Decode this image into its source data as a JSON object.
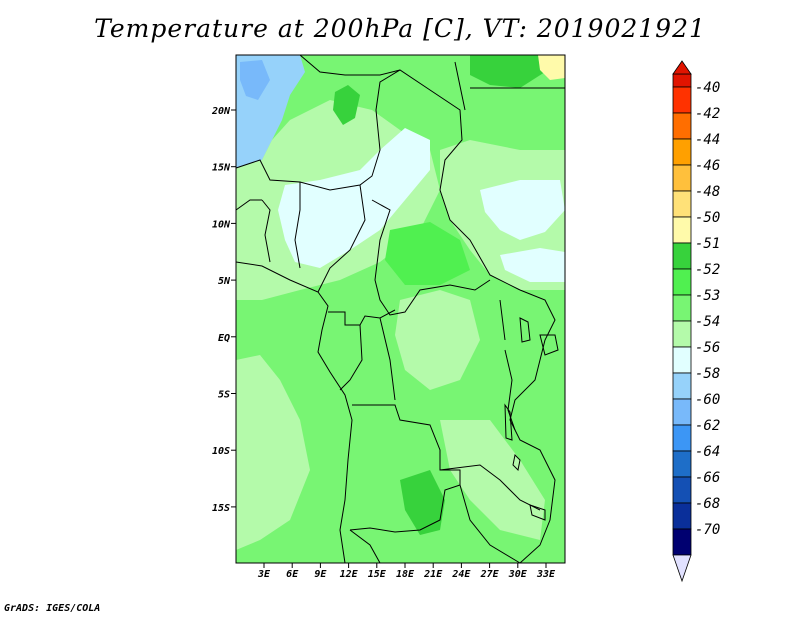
{
  "title": "Temperature at 200hPa [C], VT: 2019021921",
  "credit": "GrADS: IGES/COLA",
  "map": {
    "lat_labels": [
      "20N",
      "15N",
      "10N",
      "5N",
      "EQ",
      "5S",
      "10S",
      "15S"
    ],
    "lon_labels": [
      "3E",
      "6E",
      "9E",
      "12E",
      "15E",
      "18E",
      "21E",
      "24E",
      "27E",
      "30E",
      "33E"
    ],
    "lon_range": [
      "0E",
      "35E"
    ],
    "lat_range": [
      "20S",
      "25N"
    ],
    "colors": {
      "lt_blue": "#96d2fa",
      "v_lt_blue": "#e1ffff",
      "pale_green": "#b4faaa",
      "green": "#78f573",
      "mid_green": "#50f050",
      "dark_green": "#37d23c",
      "yellow": "#fffaaa",
      "border": "#000000"
    }
  },
  "colorbar": {
    "levels": [
      "-40",
      "-42",
      "-44",
      "-46",
      "-48",
      "-50",
      "-51",
      "-52",
      "-53",
      "-54",
      "-56",
      "-58",
      "-60",
      "-62",
      "-64",
      "-66",
      "-68",
      "-70"
    ],
    "colors": [
      "#e11400",
      "#ff3200",
      "#ff6e00",
      "#ffa000",
      "#ffc03c",
      "#ffe178",
      "#fffaaa",
      "#37d23c",
      "#50f050",
      "#78f573",
      "#b4faaa",
      "#e1ffff",
      "#96d2fa",
      "#78b9fa",
      "#3c96f5",
      "#1e6ec8",
      "#1450b4",
      "#0a2f9a",
      "#000070",
      "#e1e1ff"
    ]
  }
}
